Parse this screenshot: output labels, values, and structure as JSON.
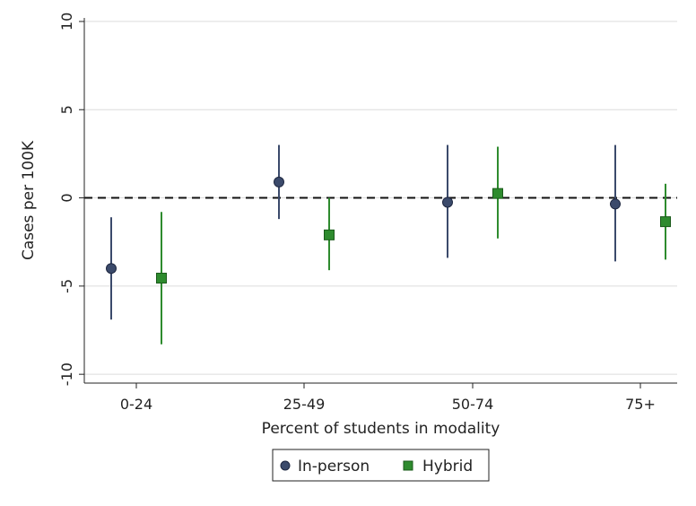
{
  "chart_data": {
    "type": "scatter",
    "title": "",
    "xlabel": "Percent of students in modality",
    "ylabel": "Cases per 100K",
    "categories": [
      "0-24",
      "25-49",
      "50-74",
      "75+"
    ],
    "ylim": [
      -10.5,
      10.2
    ],
    "yticks": [
      10,
      5,
      0,
      -5,
      -10
    ],
    "ytick_labels": [
      "10",
      "5",
      "0",
      "-5",
      "-10"
    ],
    "reference_line": 0,
    "grid": "horizontal",
    "legend_position": "bottom-center",
    "series": [
      {
        "name": "In-person",
        "marker": "circle",
        "color": "#3b4a6b",
        "values": [
          -4.0,
          0.9,
          -0.25,
          -0.35
        ],
        "lower": [
          -6.9,
          -1.2,
          -3.4,
          -3.6
        ],
        "upper": [
          -1.1,
          3.0,
          3.0,
          3.0
        ]
      },
      {
        "name": "Hybrid",
        "marker": "square",
        "color": "#2e8b2e",
        "values": [
          -4.55,
          -2.1,
          0.25,
          -1.35
        ],
        "lower": [
          -8.3,
          -4.1,
          -2.3,
          -3.5
        ],
        "upper": [
          -0.8,
          0.0,
          2.9,
          0.8
        ]
      }
    ]
  }
}
